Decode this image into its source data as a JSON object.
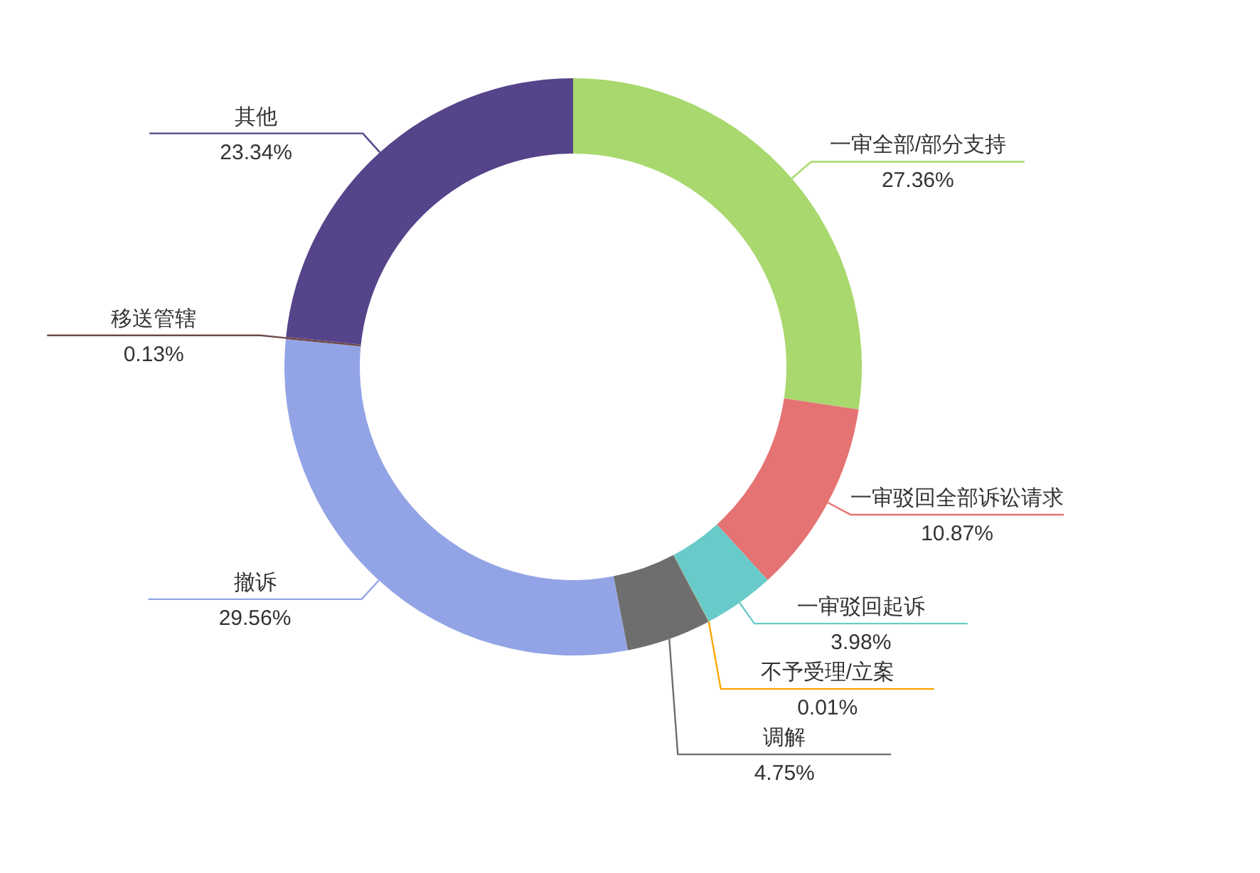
{
  "chart_data": {
    "type": "donut",
    "categories": [
      "一审全部/部分支持",
      "一审驳回全部诉讼请求",
      "一审驳回起诉",
      "不予受理/立案",
      "调解",
      "撤诉",
      "移送管辖",
      "其他"
    ],
    "values": [
      27.36,
      10.87,
      3.98,
      0.01,
      4.75,
      29.56,
      0.13,
      23.34
    ],
    "value_labels": [
      "27.36%",
      "10.87%",
      "3.98%",
      "0.01%",
      "4.75%",
      "29.56%",
      "0.13%",
      "23.34%"
    ],
    "colors": [
      "#a9d86e",
      "#e57373",
      "#68cbc9",
      "#ffa500",
      "#6e6e6e",
      "#93a4e6",
      "#6e4a4a",
      "#55448a"
    ]
  }
}
